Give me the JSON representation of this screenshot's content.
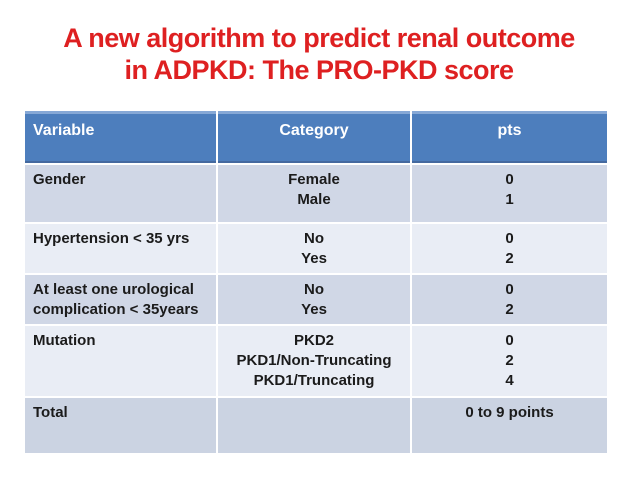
{
  "title": {
    "line1": "A new algorithm to predict renal outcome",
    "line2": "in ADPKD: The PRO-PKD score"
  },
  "colors": {
    "title_red": "#de2021",
    "header_blue": "#4d7ebd",
    "header_text": "#ffffff",
    "row_band_dark": "#d0d7e6",
    "row_band_darker": "#cbd3e2",
    "row_band_light": "#e9edf5",
    "body_text": "#1b1b1b"
  },
  "table": {
    "headers": [
      "Variable",
      "Category",
      "pts"
    ],
    "rows": [
      {
        "variable": "Gender",
        "categories": "Female\nMale",
        "pts": "0\n1"
      },
      {
        "variable": "Hypertension < 35 yrs",
        "categories": "No\nYes",
        "pts": "0\n2"
      },
      {
        "variable": "At least one urological complication < 35years",
        "categories": "No\nYes",
        "pts": "0\n2"
      },
      {
        "variable": "Mutation",
        "categories": "PKD2\nPKD1/Non-Truncating\nPKD1/Truncating",
        "pts": "0\n2\n4"
      },
      {
        "variable": "Total",
        "categories": "",
        "pts": "0 to 9 points"
      }
    ]
  }
}
